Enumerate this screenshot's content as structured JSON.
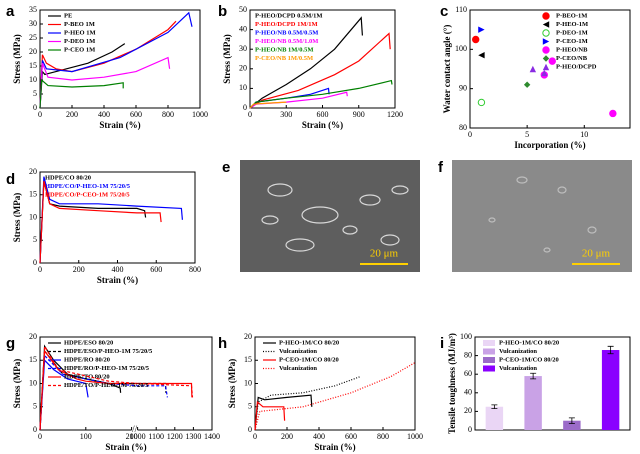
{
  "chart_data": [
    {
      "type": "line",
      "panel": "a",
      "xlabel": "Strain (%)",
      "ylabel": "Stress (MPa)",
      "xlim": [
        0,
        1000
      ],
      "xticks": [
        0,
        200,
        400,
        600,
        800,
        1000
      ],
      "ylim": [
        0,
        35
      ],
      "yticks": [
        0,
        5,
        10,
        15,
        20,
        25,
        30,
        35
      ],
      "legend": "upper left",
      "legend_text_colored": false,
      "series": [
        {
          "name": "PE",
          "color": "#000000",
          "dash": "solid",
          "x": [
            0,
            15,
            30,
            100,
            300,
            450,
            530
          ],
          "values": [
            0,
            13,
            12,
            13,
            16,
            20,
            23
          ]
        },
        {
          "name": "P-BEO 1M",
          "color": "#ff0000",
          "dash": "solid",
          "x": [
            0,
            15,
            40,
            100,
            200,
            400,
            600,
            800,
            850
          ],
          "values": [
            0,
            19,
            16,
            14,
            13,
            16,
            21,
            28,
            31
          ]
        },
        {
          "name": "P-HEO 1M",
          "color": "#0000ff",
          "dash": "solid",
          "x": [
            0,
            15,
            40,
            200,
            500,
            800,
            930,
            950
          ],
          "values": [
            0,
            17,
            14,
            13,
            18,
            27,
            34,
            29
          ]
        },
        {
          "name": "P-DEO 1M",
          "color": "#ff00ff",
          "dash": "solid",
          "x": [
            0,
            15,
            50,
            200,
            400,
            600,
            800,
            810
          ],
          "values": [
            0,
            16,
            11,
            10,
            11,
            13,
            18,
            14
          ]
        },
        {
          "name": "P-CEO 1M",
          "color": "#008000",
          "dash": "solid",
          "x": [
            0,
            10,
            50,
            200,
            400,
            520,
            520
          ],
          "values": [
            0,
            10,
            8,
            7.5,
            8,
            9,
            7
          ]
        }
      ]
    },
    {
      "type": "line",
      "panel": "b",
      "xlabel": "Strain (%)",
      "ylabel": "Stress (MPa)",
      "xlim": [
        0,
        1200
      ],
      "xticks": [
        0,
        300,
        600,
        900,
        1200
      ],
      "ylim": [
        0,
        50
      ],
      "yticks": [
        0,
        10,
        20,
        30,
        40,
        50
      ],
      "legend": "upper left",
      "legend_text_colored": true,
      "series": [
        {
          "name": "P-HEO/DCPD 0.5M/1M",
          "color": "#000000",
          "dash": "solid",
          "x": [
            0,
            100,
            300,
            500,
            700,
            920,
            930
          ],
          "values": [
            0,
            5,
            12,
            20,
            30,
            46,
            37
          ]
        },
        {
          "name": "P-HEO/DCPD 1M/1M",
          "color": "#ff0000",
          "dash": "solid",
          "x": [
            0,
            100,
            400,
            700,
            900,
            1150,
            1160
          ],
          "values": [
            0,
            4,
            9,
            17,
            24,
            38,
            30
          ]
        },
        {
          "name": "P-HEO/NB 0.5M/0.5M",
          "color": "#0000ff",
          "dash": "solid",
          "x": [
            0,
            50,
            300,
            500,
            650,
            655
          ],
          "values": [
            0,
            3,
            5,
            7,
            10,
            7
          ]
        },
        {
          "name": "P-HEO/NB 0.5M/1.0M",
          "color": "#ff00ff",
          "dash": "solid",
          "x": [
            0,
            50,
            300,
            600,
            800,
            805
          ],
          "values": [
            0,
            2,
            3,
            5,
            8,
            6
          ]
        },
        {
          "name": "P-HEO/NB 1M/0.5M",
          "color": "#008000",
          "dash": "solid",
          "x": [
            0,
            50,
            300,
            600,
            900,
            1170,
            1175
          ],
          "values": [
            0,
            3,
            5,
            7,
            10,
            14,
            12
          ]
        },
        {
          "name": "P-CEO/NB 1M/0.5M",
          "color": "#ff9900",
          "dash": "solid",
          "x": [
            0,
            30,
            150,
            300
          ],
          "values": [
            0,
            2,
            2.5,
            3
          ]
        }
      ]
    },
    {
      "type": "scatter",
      "panel": "c",
      "xlabel": "Incorporation (%)",
      "ylabel": "Water contact angle (°)",
      "xlim": [
        0,
        14
      ],
      "xticks": [
        0,
        5,
        10
      ],
      "ylim": [
        80,
        110
      ],
      "yticks": [
        80,
        90,
        100,
        110
      ],
      "legend": "upper right",
      "legend_text_colored": false,
      "series": [
        {
          "name": "P-BEO-1M",
          "color": "#ff0000",
          "marker": "circle",
          "x": [
            0.5
          ],
          "values": [
            102.5
          ]
        },
        {
          "name": "P-HEO-1M",
          "color": "#000000",
          "marker": "triangle-left",
          "x": [
            1
          ],
          "values": [
            98.5
          ]
        },
        {
          "name": "P-DEO-1M",
          "color": "#33cc33",
          "marker": "circle-open",
          "x": [
            1
          ],
          "values": [
            86.5
          ]
        },
        {
          "name": "P-CEO-1M",
          "color": "#0000ff",
          "marker": "triangle-right",
          "x": [
            1
          ],
          "values": [
            105
          ]
        },
        {
          "name": "P-HEO/NB",
          "color": "#ff00ff",
          "marker": "circle",
          "x": [
            6.5,
            7.2,
            12.5
          ],
          "values": [
            93.5,
            97,
            83.7
          ]
        },
        {
          "name": "P-CEO/NB",
          "color": "#2e8b2e",
          "marker": "diamond",
          "x": [
            5
          ],
          "values": [
            91
          ]
        },
        {
          "name": "P-HEO/DCPD",
          "color": "#8a2be2",
          "marker": "triangle-up",
          "x": [
            5.5,
            6.5
          ],
          "values": [
            95,
            94
          ]
        }
      ]
    },
    {
      "type": "line",
      "panel": "d",
      "xlabel": "Strain (%)",
      "ylabel": "Stress (MPa)",
      "xlim": [
        0,
        800
      ],
      "xticks": [
        0,
        200,
        400,
        600,
        800
      ],
      "ylim": [
        0,
        20
      ],
      "yticks": [
        0,
        5,
        10,
        15,
        20
      ],
      "legend": "upper left",
      "legend_text_colored": true,
      "series": [
        {
          "name": "HDPE/CO   80/20",
          "color": "#000000",
          "dash": "solid",
          "x": [
            0,
            20,
            50,
            100,
            300,
            500,
            540,
            545
          ],
          "values": [
            0,
            18,
            13,
            12.5,
            12,
            12,
            11.5,
            10
          ]
        },
        {
          "name": "HDPE/CO/P-HEO-1M   75/20/5",
          "color": "#0000ff",
          "dash": "solid",
          "x": [
            0,
            20,
            50,
            100,
            300,
            500,
            730,
            735
          ],
          "values": [
            0,
            19,
            14,
            13,
            13,
            12.5,
            12,
            9.5
          ]
        },
        {
          "name": "HDPE/CO/P-CEO-1M   75/20/5",
          "color": "#ff0000",
          "dash": "solid",
          "x": [
            0,
            20,
            50,
            100,
            300,
            500,
            620,
            625
          ],
          "values": [
            0,
            18,
            13,
            12,
            11.5,
            11,
            11,
            9
          ]
        }
      ]
    },
    {
      "type": "image",
      "panel": "e",
      "scale_bar": "20 μm"
    },
    {
      "type": "image",
      "panel": "f",
      "scale_bar": "20 μm"
    },
    {
      "type": "line",
      "panel": "g",
      "xlabel": "Strain (%)",
      "ylabel": "Stress (MPa)",
      "xlim": [
        0,
        1400
      ],
      "xbreak": [
        200,
        1000
      ],
      "xticks": [
        0,
        100,
        200,
        1000,
        1100,
        1200,
        1300,
        1400
      ],
      "ylim": [
        0,
        20
      ],
      "yticks": [
        0,
        5,
        10,
        15,
        20
      ],
      "legend": "upper left",
      "legend_text_colored": false,
      "series": [
        {
          "name": "HDPE/ESO   80/20",
          "color": "#000000",
          "dash": "solid",
          "x": [
            0,
            10,
            30,
            60,
            100,
            150,
            175,
            176
          ],
          "values": [
            0,
            18,
            15,
            12,
            11,
            10,
            9,
            8
          ]
        },
        {
          "name": "HDPE/ESO/P-HEO-1M   75/20/5",
          "color": "#000000",
          "dash": "dashed",
          "x": [
            0,
            10,
            50,
            150,
            1000,
            1150,
            1152
          ],
          "values": [
            0,
            17,
            12,
            10,
            10,
            10,
            8
          ]
        },
        {
          "name": "HDPE/RO   80/20",
          "color": "#0000ff",
          "dash": "solid",
          "x": [
            0,
            10,
            30,
            60,
            100,
            105
          ],
          "values": [
            0,
            15,
            13,
            11,
            10,
            7
          ]
        },
        {
          "name": "HDPE/RO/P-HEO-1M   75/20/5",
          "color": "#0000ff",
          "dash": "dashed",
          "x": [
            0,
            10,
            50,
            150,
            1000,
            1150,
            1160
          ],
          "values": [
            0,
            16,
            12,
            10,
            9.5,
            9.5,
            7
          ]
        },
        {
          "name": "HDPE/TO   80/20",
          "color": "#ff0000",
          "dash": "solid",
          "x": [
            0,
            10,
            40,
            80,
            100,
            150,
            1000,
            1290,
            1292
          ],
          "values": [
            0,
            17,
            13,
            11,
            10.5,
            10,
            10,
            10,
            7
          ]
        },
        {
          "name": "HDPE/TO/P-HEO-1M   75/20/5",
          "color": "#ff0000",
          "dash": "dashed",
          "x": [
            0,
            10,
            40,
            150,
            1000,
            1290,
            1295
          ],
          "values": [
            0,
            18,
            13,
            10.5,
            10,
            9.5,
            7
          ]
        }
      ]
    },
    {
      "type": "line",
      "panel": "h",
      "xlabel": "Strain (%)",
      "ylabel": "Stress (MPa)",
      "xlim": [
        0,
        1000
      ],
      "xticks": [
        0,
        200,
        400,
        600,
        800,
        1000
      ],
      "ylim": [
        0,
        20
      ],
      "yticks": [
        0,
        5,
        10,
        15,
        20
      ],
      "legend": "upper left",
      "legend_text_colored": false,
      "series": [
        {
          "name": "P-HEO-1M/CO   80/20",
          "color": "#000000",
          "dash": "solid",
          "x": [
            0,
            20,
            60,
            200,
            350,
            355
          ],
          "values": [
            0,
            7,
            6.5,
            7,
            7.5,
            5
          ]
        },
        {
          "name": "Vulcanization",
          "color": "#000000",
          "dash": "dotted",
          "x": [
            0,
            20,
            100,
            300,
            500,
            660
          ],
          "values": [
            0,
            6,
            7.5,
            8,
            9.5,
            11.5
          ]
        },
        {
          "name": "P-CEO-1M/CO   80/20",
          "color": "#ff0000",
          "dash": "solid",
          "x": [
            0,
            15,
            50,
            180,
            185
          ],
          "values": [
            0,
            6,
            5,
            5,
            2
          ]
        },
        {
          "name": "Vulcanization",
          "color": "#ff0000",
          "dash": "dotted",
          "x": [
            0,
            30,
            300,
            600,
            850,
            1000
          ],
          "values": [
            0,
            4,
            5,
            8,
            11.5,
            14.5
          ]
        }
      ]
    },
    {
      "type": "bar",
      "panel": "i",
      "ylabel": "Tensile toughness (MJ/m³)",
      "ylim": [
        0,
        100
      ],
      "yticks": [
        0,
        20,
        40,
        60,
        80,
        100
      ],
      "legend": "upper left",
      "legend_text_colored": false,
      "series": [
        {
          "name": "P-HEO-1M/CO   80/20",
          "color": "#ead6f5",
          "values": [
            25
          ],
          "errors": [
            2
          ]
        },
        {
          "name": "Vulcanization",
          "color": "#c9a2e6",
          "values": [
            58
          ],
          "errors": [
            3
          ]
        },
        {
          "name": "P-CEO-1M/CO   80/20",
          "color": "#9b6bc9",
          "values": [
            10
          ],
          "errors": [
            3
          ]
        },
        {
          "name": "Vulcanization",
          "color": "#8a00ff",
          "values": [
            86
          ],
          "errors": [
            4
          ]
        }
      ]
    }
  ]
}
